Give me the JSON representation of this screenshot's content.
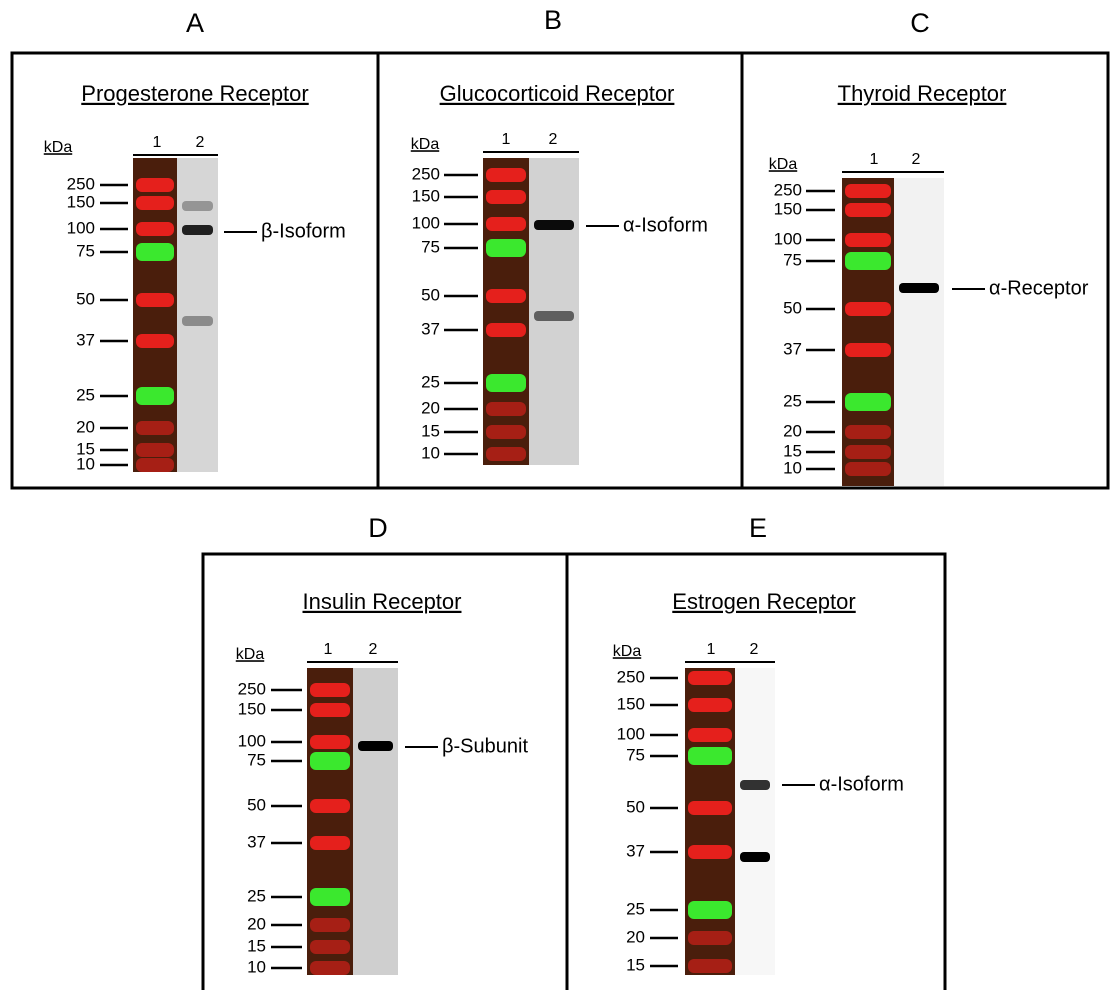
{
  "panels": [
    {
      "letter": "A",
      "title": "Progesterone Receptor",
      "kda": "kDa",
      "lanes": [
        "1",
        "2"
      ],
      "markers": [
        "250",
        "150",
        "100",
        "75",
        "50",
        "37",
        "25",
        "20",
        "15",
        "10"
      ],
      "band_label": "β-Isoform"
    },
    {
      "letter": "B",
      "title": "Glucocorticoid Receptor",
      "kda": "kDa",
      "lanes": [
        "1",
        "2"
      ],
      "markers": [
        "250",
        "150",
        "100",
        "75",
        "50",
        "37",
        "25",
        "20",
        "15",
        "10"
      ],
      "band_label": "α-Isoform"
    },
    {
      "letter": "C",
      "title": "Thyroid Receptor",
      "kda": "kDa",
      "lanes": [
        "1",
        "2"
      ],
      "markers": [
        "250",
        "150",
        "100",
        "75",
        "50",
        "37",
        "25",
        "20",
        "15",
        "10"
      ],
      "band_label": "α-Receptor"
    },
    {
      "letter": "D",
      "title": "Insulin Receptor",
      "kda": "kDa",
      "lanes": [
        "1",
        "2"
      ],
      "markers": [
        "250",
        "150",
        "100",
        "75",
        "50",
        "37",
        "25",
        "20",
        "15",
        "10"
      ],
      "band_label": "β-Subunit"
    },
    {
      "letter": "E",
      "title": "Estrogen Receptor",
      "kda": "kDa",
      "lanes": [
        "1",
        "2"
      ],
      "markers": [
        "250",
        "150",
        "100",
        "75",
        "50",
        "37",
        "25",
        "20",
        "15"
      ],
      "band_label": "α-Isoform"
    }
  ]
}
